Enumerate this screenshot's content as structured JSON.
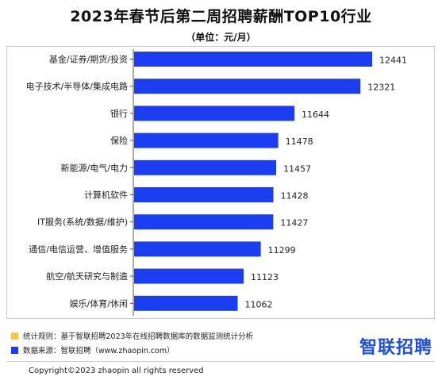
{
  "title": "2023年春节后第二周招聘薪酬TOP10行业",
  "subtitle": "（单位：元/月）",
  "chart_data": {
    "type": "bar",
    "orientation": "horizontal",
    "categories": [
      "基金/证券/期货/投资",
      "电子技术/半导体/集成电路",
      "银行",
      "保险",
      "新能源/电气/电力",
      "计算机软件",
      "IT服务(系统/数据/维护)",
      "通信/电信运营、增值服务",
      "航空/航天研究与制造",
      "娱乐/体育/休闲"
    ],
    "values": [
      12441,
      12321,
      11644,
      11478,
      11457,
      11428,
      11427,
      11299,
      11123,
      11062
    ],
    "value_labels": [
      "12441",
      "12321",
      "11644",
      "11478",
      "11457",
      "11428",
      "11427",
      "11299",
      "11123",
      "11062"
    ],
    "xlim": [
      10000,
      12800
    ],
    "bar_color": "#1b3ff0",
    "grid": false
  },
  "notes": [
    {
      "text": "统计规则：基于智联招聘2023年在线招聘数据库的数据监测统计分析",
      "color": "#f6c842"
    },
    {
      "text": "数据来源：智联招聘（www.zhaopin.com）",
      "color": "#1b3ff0"
    }
  ],
  "brand": "智联招聘",
  "copyright": "Copyright©2023 zhaopin all rights reserved"
}
